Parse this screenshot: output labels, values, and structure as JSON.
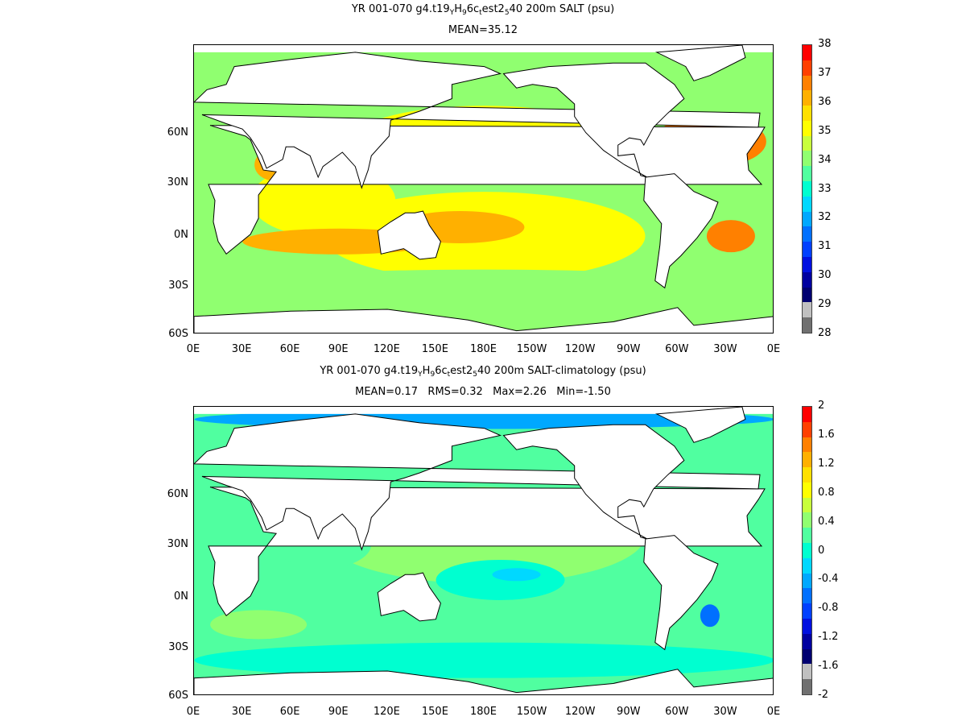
{
  "panels": [
    {
      "id": "top",
      "title_parts": [
        "YR 001-070 g4.t19",
        "Y",
        "H",
        "9",
        "6c",
        "t",
        "est2",
        "5",
        "40 200m SALT (psu)"
      ],
      "subtitle": "MEAN=35.12",
      "colorbar_ticks": [
        "38",
        "37",
        "36",
        "35",
        "34",
        "33",
        "32",
        "31",
        "30",
        "29",
        "28"
      ],
      "colorbar_colors": [
        "#ff0000",
        "#ff4000",
        "#ff8000",
        "#ffb000",
        "#ffe000",
        "#ffff00",
        "#c8ff3c",
        "#90ff70",
        "#50ffa0",
        "#00ffd0",
        "#00d8ff",
        "#00a8ff",
        "#0070ff",
        "#0040ff",
        "#0010e0",
        "#0000a0",
        "#000070",
        "#c0c0c0",
        "#707070"
      ],
      "ocean_base": "#90ff70"
    },
    {
      "id": "bottom",
      "title_parts": [
        "YR 001-070 g4.t19",
        "Y",
        "H",
        "9",
        "6c",
        "t",
        "est2",
        "5",
        "40 200m SALT-climatology (psu)"
      ],
      "subtitle": "MEAN=0.17   RMS=0.32   Max=2.26   Min=-1.50",
      "colorbar_ticks": [
        "2",
        "1.6",
        "1.2",
        "0.8",
        "0.4",
        "0",
        "-0.4",
        "-0.8",
        "-1.2",
        "-1.6",
        "-2"
      ],
      "colorbar_colors": [
        "#ff0000",
        "#ff4000",
        "#ff8000",
        "#ffb000",
        "#ffe000",
        "#ffff00",
        "#c8ff3c",
        "#90ff70",
        "#50ffa0",
        "#00ffd0",
        "#00d8ff",
        "#00a8ff",
        "#0070ff",
        "#0040ff",
        "#0010e0",
        "#0000a0",
        "#000070",
        "#c0c0c0",
        "#707070"
      ],
      "ocean_base": "#50ffa0"
    }
  ],
  "x_ticks": [
    "0E",
    "30E",
    "60E",
    "90E",
    "120E",
    "150E",
    "180E",
    "150W",
    "120W",
    "90W",
    "60W",
    "30W",
    "0E"
  ],
  "y_ticks": [
    "60N",
    "30N",
    "0N",
    "30S",
    "60S"
  ],
  "land_color": "#ffffff",
  "coast_color": "#000000"
}
